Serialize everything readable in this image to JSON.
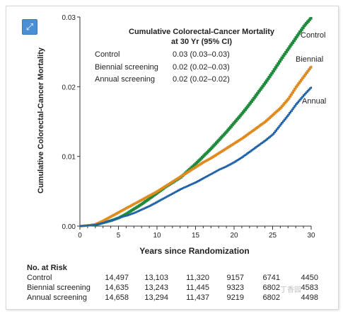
{
  "toolbar": {
    "expand_icon": "expand-arrow-icon",
    "expand_glyph": "⤢"
  },
  "chart_data": {
    "type": "line",
    "title": "Cumulative Colorectal-Cancer Mortality",
    "subtitle": "at 30 Yr (95% CI)",
    "xlabel": "Years since Randomization",
    "ylabel": "Cumulative Colorectal-Cancer Mortality",
    "xlim": [
      0,
      30
    ],
    "ylim": [
      0,
      0.03
    ],
    "x_ticks": [
      "0",
      "5",
      "10",
      "15",
      "20",
      "25",
      "30"
    ],
    "y_ticks": [
      "0.00",
      "0.01",
      "0.02",
      "0.03"
    ],
    "grid": false,
    "annotation_rows": [
      {
        "label": "Control",
        "value": "0.03 (0.03–0.03)"
      },
      {
        "label": "Biennial screening",
        "value": "0.02 (0.02–0.03)"
      },
      {
        "label": "Annual screening",
        "value": "0.02 (0.02–0.02)"
      }
    ],
    "series": [
      {
        "name": "Control",
        "color": "#1e8a3c",
        "points": [
          [
            0,
            0
          ],
          [
            1,
            0.0001
          ],
          [
            2,
            0.0002
          ],
          [
            3,
            0.0005
          ],
          [
            4,
            0.0008
          ],
          [
            5,
            0.0012
          ],
          [
            6,
            0.0018
          ],
          [
            7,
            0.0025
          ],
          [
            8,
            0.0032
          ],
          [
            9,
            0.004
          ],
          [
            10,
            0.0048
          ],
          [
            11,
            0.0056
          ],
          [
            12,
            0.0063
          ],
          [
            13,
            0.007
          ],
          [
            14,
            0.008
          ],
          [
            15,
            0.009
          ],
          [
            16,
            0.0101
          ],
          [
            17,
            0.0112
          ],
          [
            18,
            0.0124
          ],
          [
            19,
            0.0136
          ],
          [
            20,
            0.0149
          ],
          [
            21,
            0.0162
          ],
          [
            22,
            0.0176
          ],
          [
            23,
            0.0191
          ],
          [
            24,
            0.0206
          ],
          [
            25,
            0.0222
          ],
          [
            26,
            0.0239
          ],
          [
            27,
            0.0255
          ],
          [
            28,
            0.0271
          ],
          [
            29,
            0.0287
          ],
          [
            30,
            0.03
          ]
        ]
      },
      {
        "name": "Biennial",
        "color": "#e08a1e",
        "points": [
          [
            0,
            0
          ],
          [
            1,
            0.0001
          ],
          [
            2,
            0.0003
          ],
          [
            3,
            0.0008
          ],
          [
            4,
            0.0014
          ],
          [
            5,
            0.002
          ],
          [
            6,
            0.0026
          ],
          [
            7,
            0.0032
          ],
          [
            8,
            0.0038
          ],
          [
            9,
            0.0044
          ],
          [
            10,
            0.005
          ],
          [
            11,
            0.0057
          ],
          [
            12,
            0.0064
          ],
          [
            13,
            0.0071
          ],
          [
            14,
            0.0078
          ],
          [
            15,
            0.0085
          ],
          [
            16,
            0.0092
          ],
          [
            17,
            0.0098
          ],
          [
            18,
            0.0105
          ],
          [
            19,
            0.0112
          ],
          [
            20,
            0.0119
          ],
          [
            21,
            0.0126
          ],
          [
            22,
            0.0134
          ],
          [
            23,
            0.0142
          ],
          [
            24,
            0.015
          ],
          [
            25,
            0.016
          ],
          [
            26,
            0.017
          ],
          [
            27,
            0.0183
          ],
          [
            28,
            0.02
          ],
          [
            29,
            0.0215
          ],
          [
            30,
            0.023
          ]
        ]
      },
      {
        "name": "Annual",
        "color": "#1f62a8",
        "points": [
          [
            0,
            0
          ],
          [
            1,
            0.0001
          ],
          [
            2,
            0.0002
          ],
          [
            3,
            0.0005
          ],
          [
            4,
            0.0008
          ],
          [
            5,
            0.0012
          ],
          [
            6,
            0.0015
          ],
          [
            7,
            0.0019
          ],
          [
            8,
            0.0024
          ],
          [
            9,
            0.0029
          ],
          [
            10,
            0.0035
          ],
          [
            11,
            0.0041
          ],
          [
            12,
            0.0047
          ],
          [
            13,
            0.0053
          ],
          [
            14,
            0.0058
          ],
          [
            15,
            0.0063
          ],
          [
            16,
            0.0069
          ],
          [
            17,
            0.0075
          ],
          [
            18,
            0.0081
          ],
          [
            19,
            0.0086
          ],
          [
            20,
            0.0092
          ],
          [
            21,
            0.0099
          ],
          [
            22,
            0.0107
          ],
          [
            23,
            0.0115
          ],
          [
            24,
            0.0123
          ],
          [
            25,
            0.0132
          ],
          [
            26,
            0.0146
          ],
          [
            27,
            0.016
          ],
          [
            28,
            0.0175
          ],
          [
            29,
            0.0188
          ],
          [
            30,
            0.02
          ]
        ]
      }
    ],
    "at_risk": {
      "title": "No. at Risk",
      "rows": [
        {
          "label": "Control",
          "values": [
            "14,497",
            "13,103",
            "11,320",
            "9157",
            "6741",
            "4450"
          ]
        },
        {
          "label": "Biennial screening",
          "values": [
            "14,635",
            "13,243",
            "11,445",
            "9323",
            "6802",
            "4583"
          ]
        },
        {
          "label": "Annual screening",
          "values": [
            "14,658",
            "13,294",
            "11,437",
            "9219",
            "6802",
            "4498"
          ]
        }
      ]
    }
  },
  "watermark": "丁香园"
}
